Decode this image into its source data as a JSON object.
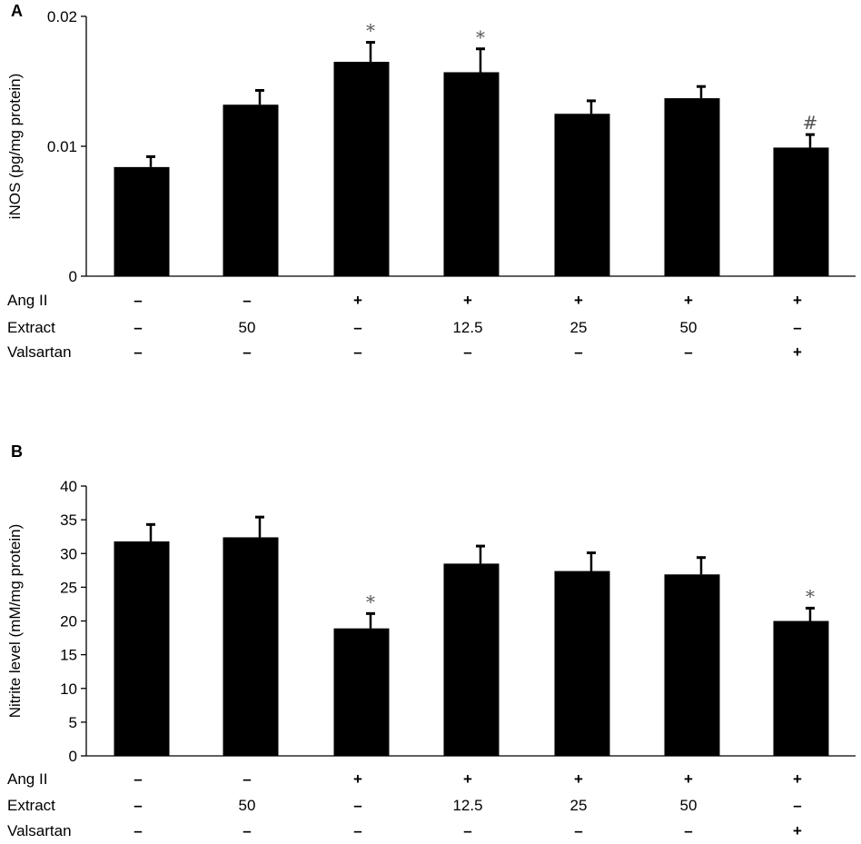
{
  "chart_data": [
    {
      "type": "bar",
      "panel_label": "A",
      "ylabel": "iNOS (pg/mg protein)",
      "ylim": [
        0,
        0.02
      ],
      "yticks": [
        0,
        0.01,
        0.02
      ],
      "ytick_labels": [
        "0",
        "0.01",
        "0.02"
      ],
      "values": [
        0.0084,
        0.0132,
        0.0165,
        0.0157,
        0.0125,
        0.0137,
        0.0099
      ],
      "errors": [
        0.0008,
        0.0011,
        0.0015,
        0.0018,
        0.001,
        0.0009,
        0.001
      ],
      "annotations": [
        "",
        "",
        "*",
        "*",
        "",
        "",
        "#"
      ],
      "conditions": [
        {
          "label": "Ang II",
          "values": [
            "–",
            "–",
            "+",
            "+",
            "+",
            "+",
            "+"
          ]
        },
        {
          "label": "Extract",
          "values": [
            "–",
            "50",
            "–",
            "12.5",
            "25",
            "50",
            "–"
          ]
        },
        {
          "label": "Valsartan",
          "values": [
            "–",
            "–",
            "–",
            "–",
            "–",
            "–",
            "+"
          ]
        }
      ]
    },
    {
      "type": "bar",
      "panel_label": "B",
      "ylabel": "Nitrite level (mM/mg protein)",
      "ylim": [
        0,
        40
      ],
      "yticks": [
        0,
        5,
        10,
        15,
        20,
        25,
        30,
        35,
        40
      ],
      "ytick_labels": [
        "0",
        "5",
        "10",
        "15",
        "20",
        "25",
        "30",
        "35",
        "40"
      ],
      "values": [
        31.8,
        32.4,
        18.9,
        28.5,
        27.4,
        26.9,
        20.0
      ],
      "errors": [
        2.5,
        3.0,
        2.2,
        2.6,
        2.7,
        2.5,
        1.9
      ],
      "annotations": [
        "",
        "",
        "*",
        "",
        "",
        "",
        "*"
      ],
      "conditions": [
        {
          "label": "Ang II",
          "values": [
            "–",
            "–",
            "+",
            "+",
            "+",
            "+",
            "+"
          ]
        },
        {
          "label": "Extract",
          "values": [
            "–",
            "50",
            "–",
            "12.5",
            "25",
            "50",
            "–"
          ]
        },
        {
          "label": "Valsartan",
          "values": [
            "–",
            "–",
            "–",
            "–",
            "–",
            "–",
            "+"
          ]
        }
      ]
    }
  ]
}
